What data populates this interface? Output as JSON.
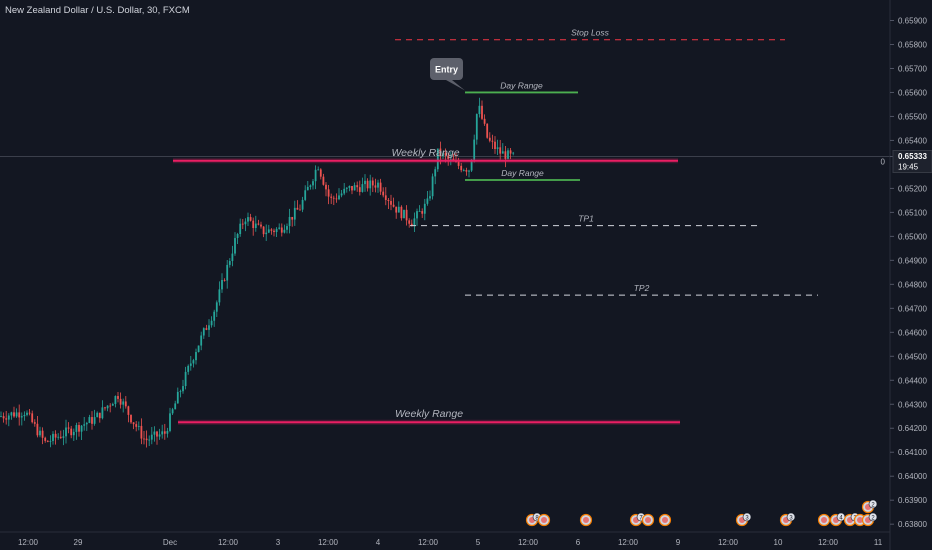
{
  "header": {
    "title": "New Zealand Dollar / U.S. Dollar, 30, FXCM"
  },
  "price_scale": {
    "labels": [
      "0.65900",
      "0.65800",
      "0.65700",
      "0.65600",
      "0.65500",
      "0.65400",
      "0.65333",
      "0.65200",
      "0.65100",
      "0.65000",
      "0.64900",
      "0.64800",
      "0.64700",
      "0.64600",
      "0.64500",
      "0.64400",
      "0.64300",
      "0.64200",
      "0.64100",
      "0.64000",
      "0.63900",
      "0.63800"
    ],
    "current_price": "0.65333",
    "countdown": "19:45",
    "marker_char": "0"
  },
  "time_axis": {
    "labels": [
      "12:00",
      "29",
      "Dec",
      "12:00",
      "3",
      "12:00",
      "4",
      "12:00",
      "5",
      "12:00",
      "6",
      "12:00",
      "9",
      "12:00",
      "10",
      "12:00",
      "11"
    ]
  },
  "colors": {
    "background": "#131722",
    "up": "#26a69a",
    "down": "#ef5350",
    "weekly": "#e91e63",
    "day": "#4caf50",
    "stop": "#f23645",
    "tp": "#d1d4dc"
  },
  "chart_data": {
    "type": "candlestick",
    "symbol": "NZDUSD",
    "timeframe": "30",
    "ylim": [
      0.6375,
      0.66
    ],
    "last_price": 0.65333,
    "anchors": [
      {
        "x": 0,
        "y": 0.6425
      },
      {
        "x": 25,
        "y": 0.6427
      },
      {
        "x": 45,
        "y": 0.6414
      },
      {
        "x": 70,
        "y": 0.6419
      },
      {
        "x": 95,
        "y": 0.6424
      },
      {
        "x": 118,
        "y": 0.6434
      },
      {
        "x": 130,
        "y": 0.6425
      },
      {
        "x": 145,
        "y": 0.6415
      },
      {
        "x": 165,
        "y": 0.6418
      },
      {
        "x": 175,
        "y": 0.643
      },
      {
        "x": 195,
        "y": 0.6452
      },
      {
        "x": 215,
        "y": 0.647
      },
      {
        "x": 235,
        "y": 0.6498
      },
      {
        "x": 245,
        "y": 0.6508
      },
      {
        "x": 262,
        "y": 0.6502
      },
      {
        "x": 280,
        "y": 0.6503
      },
      {
        "x": 300,
        "y": 0.6512
      },
      {
        "x": 318,
        "y": 0.653
      },
      {
        "x": 330,
        "y": 0.6515
      },
      {
        "x": 350,
        "y": 0.652
      },
      {
        "x": 378,
        "y": 0.6522
      },
      {
        "x": 395,
        "y": 0.6512
      },
      {
        "x": 412,
        "y": 0.6506
      },
      {
        "x": 428,
        "y": 0.6514
      },
      {
        "x": 438,
        "y": 0.6535
      },
      {
        "x": 455,
        "y": 0.653
      },
      {
        "x": 470,
        "y": 0.6528
      },
      {
        "x": 478,
        "y": 0.6555
      },
      {
        "x": 488,
        "y": 0.654
      },
      {
        "x": 500,
        "y": 0.6535
      },
      {
        "x": 512,
        "y": 0.6533
      }
    ],
    "annotations": [
      {
        "label": "Stop Loss",
        "kind": "stop",
        "x1": 395,
        "x2": 785,
        "price": 0.6582
      },
      {
        "label": "Day Range",
        "kind": "day",
        "x1": 465,
        "x2": 578,
        "price": 0.656
      },
      {
        "label": "Weekly Range",
        "kind": "weekly",
        "x1": 173,
        "x2": 678,
        "price": 0.65315
      },
      {
        "label": "Day Range",
        "kind": "day",
        "x1": 465,
        "x2": 580,
        "price": 0.65235
      },
      {
        "label": "TP1",
        "kind": "tp",
        "x1": 410,
        "x2": 762,
        "price": 0.65045
      },
      {
        "label": "TP2",
        "kind": "tp",
        "x1": 465,
        "x2": 818,
        "price": 0.64755
      },
      {
        "label": "Weekly Range",
        "kind": "weekly",
        "x1": 178,
        "x2": 680,
        "price": 0.64225
      }
    ],
    "entry": {
      "label": "Entry",
      "x": 478,
      "price": 0.656
    }
  },
  "events": {
    "badges": [
      "8",
      "7",
      "3",
      "3",
      "4",
      "2",
      "2",
      "2"
    ]
  }
}
